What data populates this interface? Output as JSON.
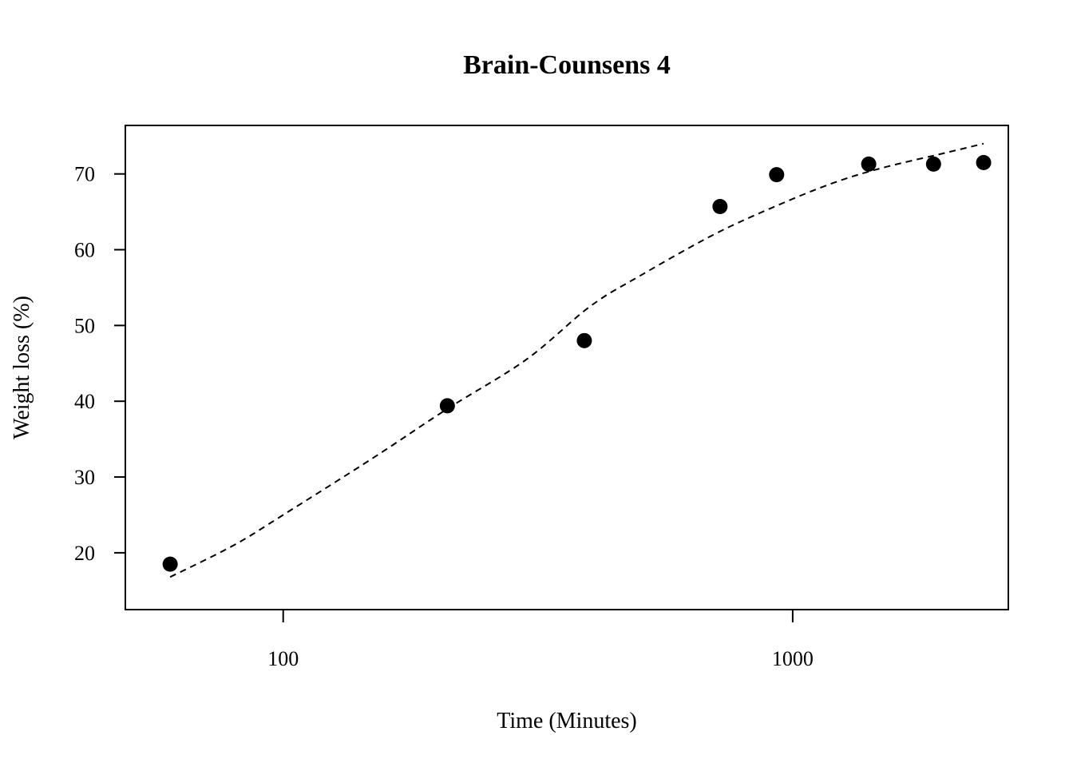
{
  "chart_data": {
    "type": "scatter",
    "title": "Brain-Counsens 4",
    "xlabel": "Time (Minutes)",
    "ylabel": "Weight loss (%)",
    "x_scale": "log",
    "xlim": [
      49,
      2650
    ],
    "ylim": [
      12.5,
      76.4
    ],
    "x_ticks": [
      {
        "value": 100,
        "label": "100"
      },
      {
        "value": 1000,
        "label": "1000"
      }
    ],
    "y_ticks": [
      {
        "value": 20,
        "label": "20"
      },
      {
        "value": 30,
        "label": "30"
      },
      {
        "value": 40,
        "label": "40"
      },
      {
        "value": 50,
        "label": "50"
      },
      {
        "value": 60,
        "label": "60"
      },
      {
        "value": 70,
        "label": "70"
      }
    ],
    "grid": false,
    "series": [
      {
        "kind": "points",
        "color": "#000000",
        "points": [
          {
            "x": 60,
            "y": 18.5
          },
          {
            "x": 210,
            "y": 39.4
          },
          {
            "x": 390,
            "y": 48.0
          },
          {
            "x": 720,
            "y": 65.7
          },
          {
            "x": 930,
            "y": 69.9
          },
          {
            "x": 1410,
            "y": 71.3
          },
          {
            "x": 1890,
            "y": 71.3
          },
          {
            "x": 2370,
            "y": 71.5
          }
        ]
      },
      {
        "kind": "fitted-curve",
        "style": "dashed",
        "color": "#000000",
        "points": [
          {
            "x": 60,
            "y": 16.8
          },
          {
            "x": 80,
            "y": 21.0
          },
          {
            "x": 100,
            "y": 25.0
          },
          {
            "x": 150,
            "y": 32.5
          },
          {
            "x": 210,
            "y": 39.0
          },
          {
            "x": 300,
            "y": 45.5
          },
          {
            "x": 400,
            "y": 52.5
          },
          {
            "x": 500,
            "y": 56.5
          },
          {
            "x": 700,
            "y": 62.0
          },
          {
            "x": 930,
            "y": 65.8
          },
          {
            "x": 1200,
            "y": 68.8
          },
          {
            "x": 1500,
            "y": 70.8
          },
          {
            "x": 2000,
            "y": 72.8
          },
          {
            "x": 2370,
            "y": 74.0
          }
        ]
      }
    ]
  }
}
